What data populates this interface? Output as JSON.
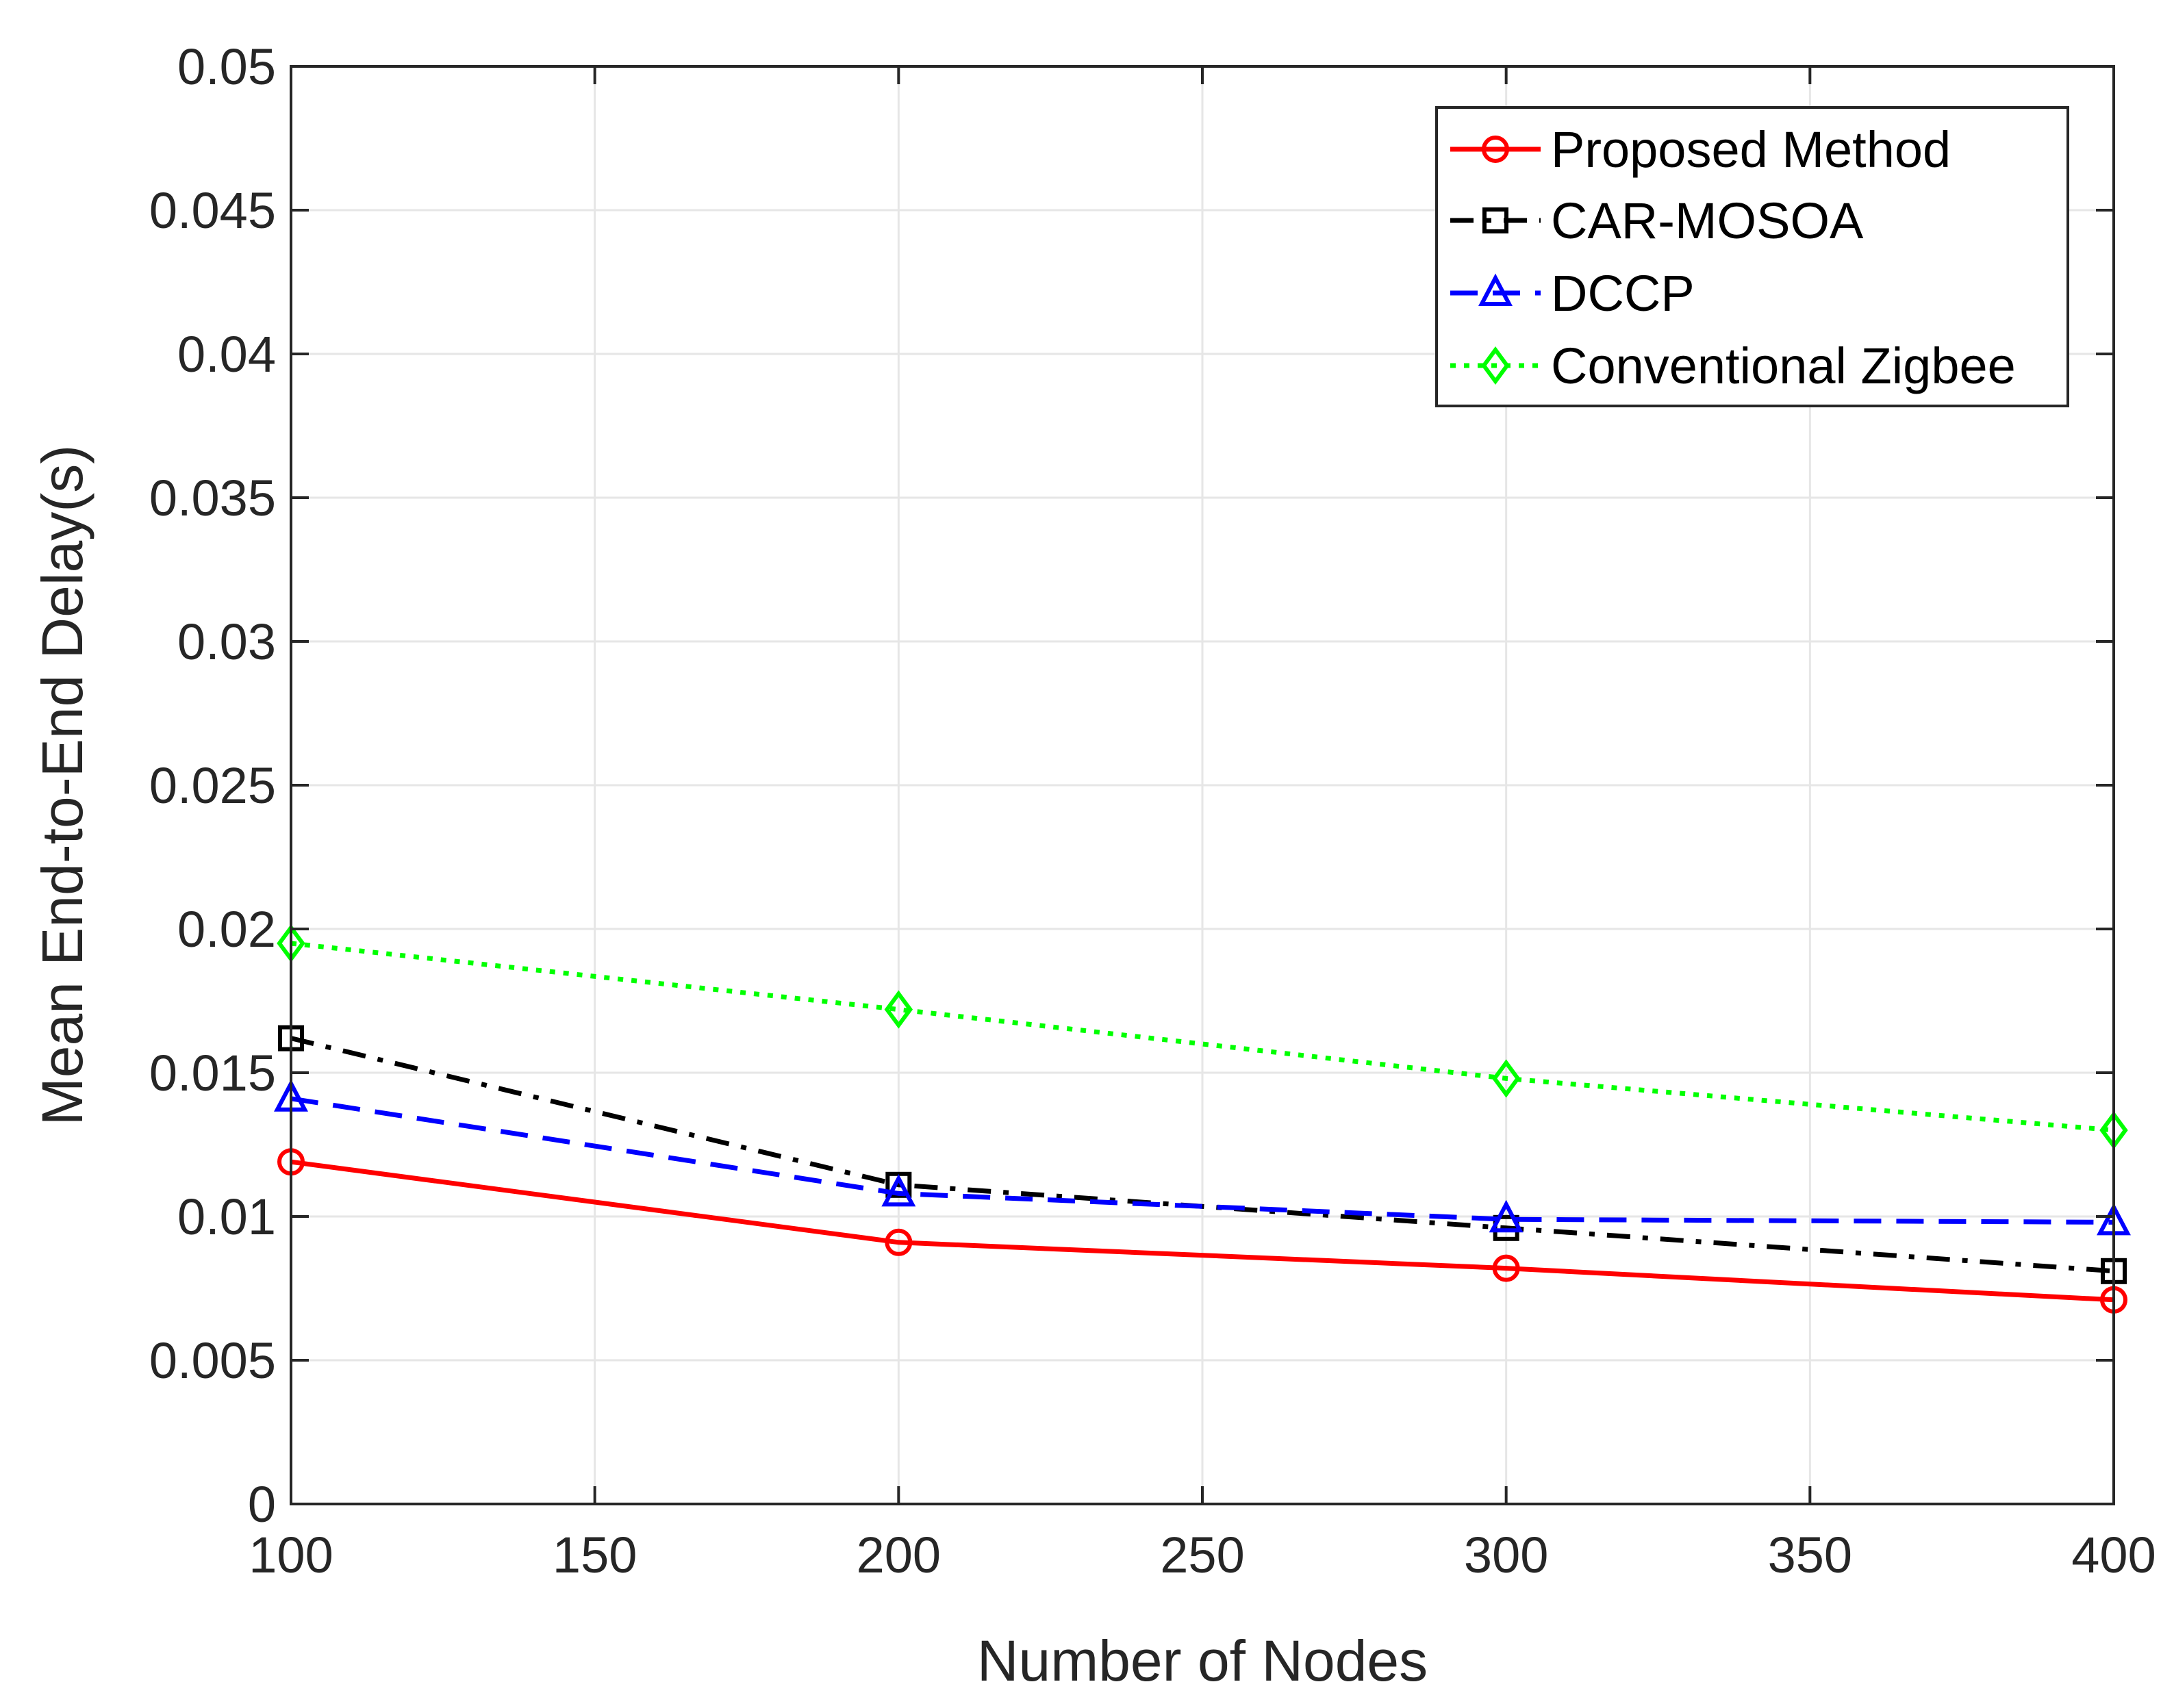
{
  "chart_data": {
    "type": "line",
    "title": "",
    "xlabel": "Number of Nodes",
    "ylabel": "Mean End-to-End Delay(s)",
    "xlim": [
      100,
      400
    ],
    "ylim": [
      0,
      0.05
    ],
    "xticks": [
      "100",
      "150",
      "200",
      "250",
      "300",
      "350",
      "400"
    ],
    "yticks": [
      "0",
      "0.005",
      "0.01",
      "0.015",
      "0.02",
      "0.025",
      "0.03",
      "0.035",
      "0.04",
      "0.045",
      "0.05"
    ],
    "grid": true,
    "legend_position": "top-right",
    "x": [
      100,
      200,
      300,
      400
    ],
    "series": [
      {
        "name": "Proposed Method",
        "values": [
          0.0119,
          0.0091,
          0.0082,
          0.0071
        ],
        "color": "#ff0000",
        "dash": "solid",
        "marker": "circle"
      },
      {
        "name": "CAR-MOSOA",
        "values": [
          0.0162,
          0.0111,
          0.0096,
          0.0081
        ],
        "color": "#000000",
        "dash": "dashdot",
        "marker": "square"
      },
      {
        "name": "DCCP",
        "values": [
          0.0141,
          0.0108,
          0.0099,
          0.0098
        ],
        "color": "#0000ff",
        "dash": "dashed",
        "marker": "triangle"
      },
      {
        "name": "Conventional Zigbee",
        "values": [
          0.0195,
          0.0172,
          0.0148,
          0.013
        ],
        "color": "#00ff00",
        "dash": "dotted",
        "marker": "diamond"
      }
    ]
  }
}
